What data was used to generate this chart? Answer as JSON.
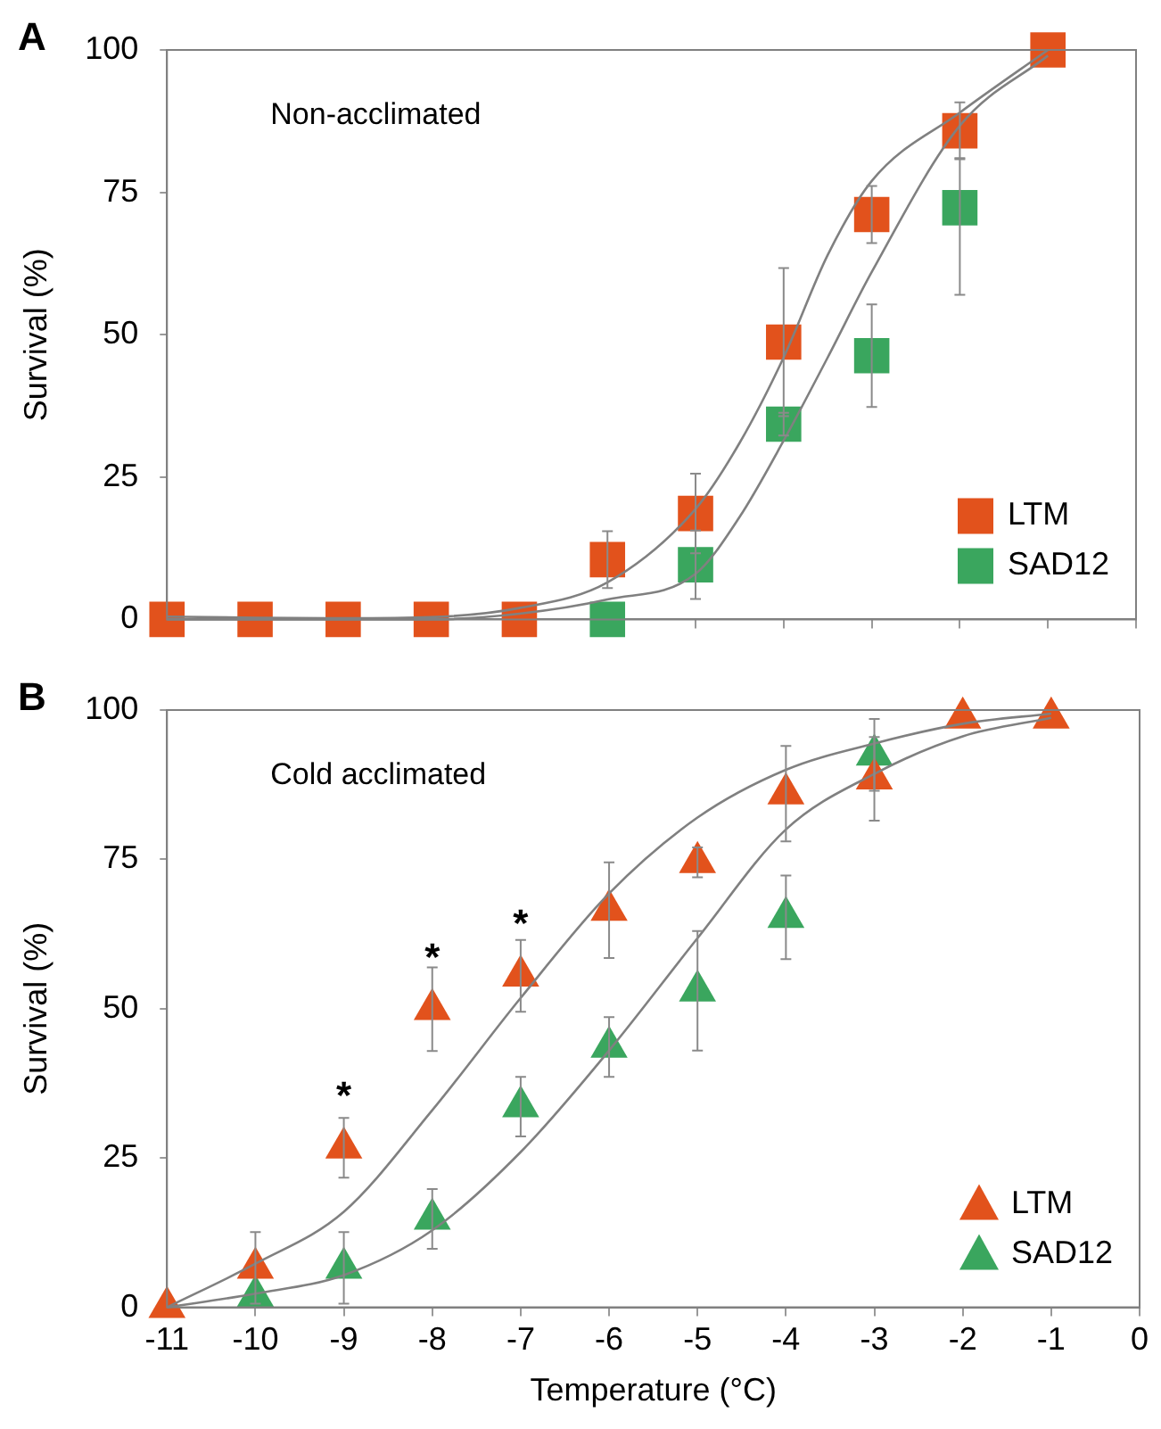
{
  "chart_data": [
    {
      "type": "scatter",
      "title": "A",
      "ylabel": "Survival (%)",
      "annotations": [
        "Non-acclimated"
      ],
      "x": [
        -11,
        -10,
        -9,
        -8,
        -7,
        -6,
        -5,
        -4,
        -3,
        -2,
        -1
      ],
      "xlim": [
        -11,
        0
      ],
      "xticks": [
        -11,
        -10,
        -9,
        -8,
        -7,
        -6,
        -5,
        -4,
        -3,
        -2,
        -1,
        0
      ],
      "ylim": [
        0,
        100
      ],
      "yticks": [
        0,
        25,
        50,
        75,
        100
      ],
      "tick_labels": "y",
      "grid": false,
      "legend": "bottom right",
      "marker": "square",
      "series": [
        {
          "name": "LTM",
          "color": "#e2521c",
          "values": [
            0,
            0,
            0,
            0,
            0,
            10.5,
            18.6,
            48.7,
            71.1,
            85.8,
            100
          ],
          "errors": [
            null,
            null,
            null,
            null,
            null,
            5,
            7,
            13,
            5,
            5,
            null
          ]
        },
        {
          "name": "SAD12",
          "color": "#3aa65e",
          "values": [
            null,
            null,
            null,
            null,
            null,
            0,
            9.6,
            34.3,
            46.3,
            72.3,
            null
          ],
          "errors": [
            null,
            null,
            null,
            null,
            null,
            null,
            6,
            2,
            9,
            [
              57,
              81
            ],
            null
          ]
        },
        {
          "type": "line",
          "marker": "none",
          "color": "#808080",
          "x": [
            -11,
            -10,
            -9,
            -8,
            -7,
            -6,
            -5,
            -4.5,
            -4,
            -3.5,
            -3,
            -2,
            -1
          ],
          "values": [
            0.5,
            0.3,
            0.2,
            0.4,
            2,
            6.5,
            19.4,
            31,
            46,
            64,
            77,
            89,
            100
          ]
        },
        {
          "type": "line",
          "marker": "none",
          "color": "#808080",
          "x": [
            -11,
            -10,
            -9,
            -8,
            -7,
            -6,
            -5,
            -4.5,
            -4,
            -3.5,
            -3,
            -2,
            -1
          ],
          "values": [
            0,
            0,
            0,
            0,
            1,
            3.5,
            8,
            18,
            31.4,
            46,
            61,
            86.7,
            99
          ]
        }
      ]
    },
    {
      "type": "scatter",
      "title": "B",
      "xlabel": "Temperature (°C)",
      "ylabel": "Survival (%)",
      "annotations": [
        "Cold acclimated",
        {
          "text": "*",
          "x": -9,
          "y": 26.7
        },
        {
          "text": "*",
          "x": -8,
          "y": 49.9
        },
        {
          "text": "*",
          "x": -7,
          "y": 55.5
        }
      ],
      "x": [
        -11,
        -10,
        -9,
        -8,
        -7,
        -6,
        -5,
        -4,
        -3,
        -2,
        -1
      ],
      "xlim": [
        -11,
        0
      ],
      "xticks": [
        -11,
        -10,
        -9,
        -8,
        -7,
        -6,
        -5,
        -4,
        -3,
        -2,
        -1,
        0
      ],
      "ylim": [
        0,
        100
      ],
      "yticks": [
        0,
        25,
        50,
        75,
        100
      ],
      "grid": false,
      "legend": "bottom right",
      "marker": "triangle",
      "series": [
        {
          "name": "LTM",
          "color": "#e2521c",
          "values": [
            0,
            6.6,
            26.7,
            49.9,
            55.5,
            66.5,
            74.5,
            86,
            88.5,
            98.7,
            98.7
          ],
          "errors": [
            null,
            6,
            5,
            7,
            6,
            8,
            2.5,
            8,
            7,
            null,
            null
          ]
        },
        {
          "name": "SAD12",
          "color": "#3aa65e",
          "values": [
            null,
            1.9,
            6.6,
            14.8,
            33.6,
            43.6,
            53,
            65.3,
            92.5,
            null,
            null
          ],
          "errors": [
            null,
            null,
            6,
            5,
            5,
            5,
            10,
            7,
            6,
            null,
            null
          ]
        },
        {
          "type": "line",
          "marker": "none",
          "color": "#808080",
          "x": [
            -11,
            -10,
            -9,
            -8,
            -7,
            -6,
            -5,
            -4,
            -3,
            -2,
            -1
          ],
          "values": [
            0,
            7.3,
            16,
            33,
            51.8,
            69.3,
            82,
            90,
            94.4,
            97.7,
            99.4
          ]
        },
        {
          "type": "line",
          "marker": "none",
          "color": "#808080",
          "x": [
            -11,
            -10,
            -9,
            -8,
            -7,
            -6,
            -5,
            -4,
            -3,
            -2,
            -1
          ],
          "values": [
            0,
            2.3,
            5.4,
            12.9,
            26,
            43,
            61.8,
            80,
            89.3,
            95.6,
            98.7
          ]
        }
      ]
    }
  ]
}
